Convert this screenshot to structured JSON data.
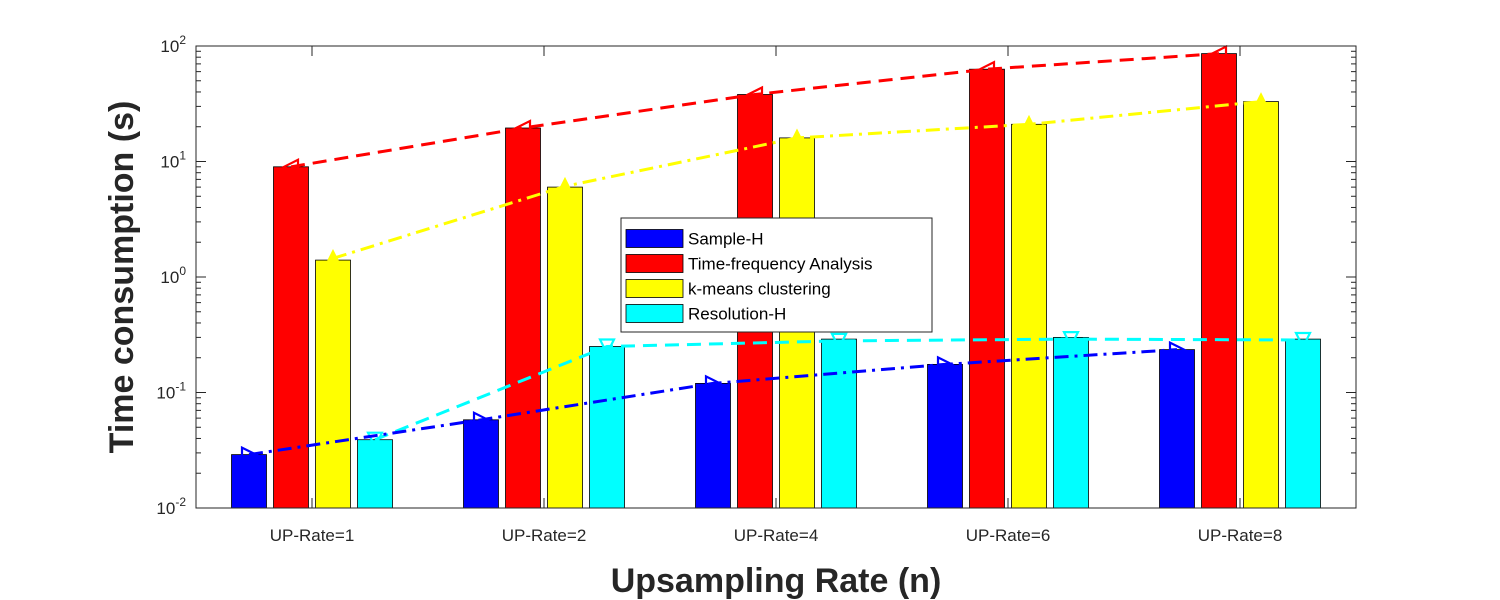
{
  "chart_data": {
    "type": "bar",
    "yscale": "log",
    "ylim": [
      0.01,
      100
    ],
    "xlabel": "Upsampling Rate (n)",
    "ylabel": "Time consumption (s)",
    "categories": [
      "UP-Rate=1",
      "UP-Rate=2",
      "UP-Rate=4",
      "UP-Rate=6",
      "UP-Rate=8"
    ],
    "y_tick_labels": [
      {
        "base": "10",
        "exp": "-2"
      },
      {
        "base": "10",
        "exp": "-1"
      },
      {
        "base": "10",
        "exp": "0"
      },
      {
        "base": "10",
        "exp": "1"
      },
      {
        "base": "10",
        "exp": "2"
      }
    ],
    "legend_position": "center",
    "grid": false,
    "series": [
      {
        "name": "Sample-H",
        "color": "#0000ff",
        "values": [
          0.029,
          0.058,
          0.12,
          0.175,
          0.235
        ]
      },
      {
        "name": "Time-frequency Analysis",
        "color": "#ff0000",
        "values": [
          9.0,
          19.5,
          38.0,
          63.0,
          86.0
        ]
      },
      {
        "name": "k-means clustering",
        "color": "#ffff00",
        "values": [
          1.4,
          6.0,
          16.0,
          21.0,
          33.0
        ]
      },
      {
        "name": "Resolution-H",
        "color": "#00ffff",
        "values": [
          0.039,
          0.25,
          0.29,
          0.3,
          0.29
        ]
      }
    ],
    "trend_lines": [
      {
        "series": "Time-frequency Analysis",
        "color": "#ff0000",
        "style": "dashed",
        "marker": "triangle-left",
        "values": [
          9.0,
          19.5,
          38.0,
          63.0,
          86.0
        ]
      },
      {
        "series": "k-means clustering",
        "color": "#ffff00",
        "style": "dash-dot",
        "marker": "triangle-up",
        "values": [
          1.45,
          6.1,
          16.0,
          21.0,
          33.0
        ]
      },
      {
        "series": "Resolution-H",
        "color": "#00ffff",
        "style": "dashed",
        "marker": "triangle-down",
        "values": [
          0.039,
          0.25,
          0.28,
          0.29,
          0.285
        ]
      },
      {
        "series": "Sample-H",
        "color": "#0000ff",
        "style": "dash-dot",
        "marker": "triangle-right",
        "values": [
          0.029,
          0.058,
          0.12,
          0.175,
          0.235
        ]
      }
    ]
  }
}
